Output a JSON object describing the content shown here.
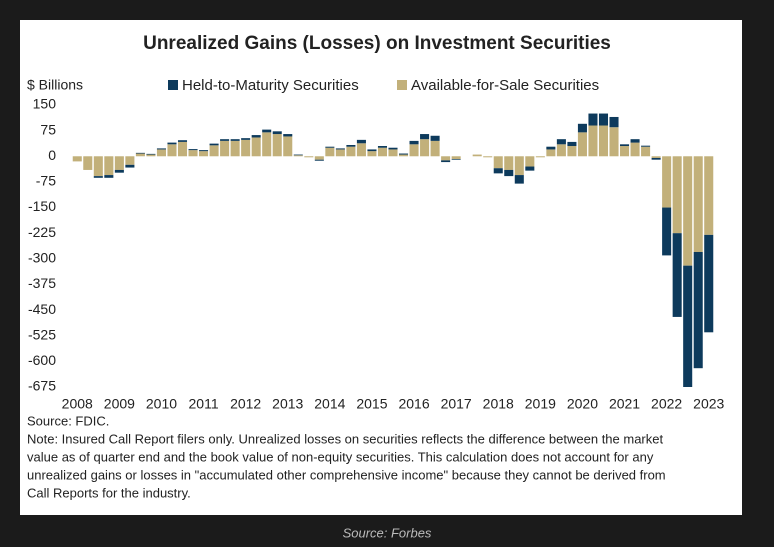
{
  "chart_data": {
    "type": "bar",
    "stacked": true,
    "title": "Unrealized Gains (Losses) on Investment Securities",
    "y_axis_label": "$ Billions",
    "categories": [
      "2008",
      null,
      null,
      null,
      "2009",
      null,
      null,
      null,
      "2010",
      null,
      null,
      null,
      "2011",
      null,
      null,
      null,
      "2012",
      null,
      null,
      null,
      "2013",
      null,
      null,
      null,
      "2014",
      null,
      null,
      null,
      "2015",
      null,
      null,
      null,
      "2016",
      null,
      null,
      null,
      "2017",
      null,
      null,
      null,
      "2018",
      null,
      null,
      null,
      "2019",
      null,
      null,
      null,
      "2020",
      null,
      null,
      null,
      "2021",
      null,
      null,
      null,
      "2022",
      null,
      null,
      null,
      "2023"
    ],
    "series": [
      {
        "name": "Held-to-Maturity Securities",
        "color": "#0d3a5c",
        "values": [
          0,
          0,
          -5,
          -8,
          -8,
          -8,
          2,
          2,
          3,
          5,
          5,
          3,
          3,
          5,
          5,
          5,
          5,
          7,
          8,
          8,
          7,
          2,
          0,
          -3,
          3,
          3,
          5,
          10,
          5,
          5,
          5,
          3,
          10,
          15,
          15,
          -5,
          -2,
          0,
          0,
          0,
          -15,
          -18,
          -25,
          -12,
          0,
          8,
          15,
          12,
          25,
          35,
          35,
          30,
          5,
          10,
          3,
          -5,
          -140,
          -245,
          -355,
          -340,
          -285
        ]
      },
      {
        "name": "Available-for-Sale Securities",
        "color": "#c2b07a",
        "values": [
          -15,
          -40,
          -58,
          -55,
          -40,
          -25,
          8,
          5,
          20,
          35,
          42,
          18,
          15,
          32,
          45,
          45,
          48,
          55,
          70,
          65,
          58,
          3,
          -3,
          -10,
          25,
          20,
          28,
          38,
          15,
          25,
          20,
          5,
          35,
          50,
          45,
          -12,
          -8,
          0,
          5,
          -3,
          -35,
          -40,
          -55,
          -30,
          -3,
          20,
          35,
          30,
          70,
          90,
          90,
          85,
          30,
          40,
          28,
          -5,
          -150,
          -225,
          -320,
          -280,
          -230
        ]
      }
    ],
    "ylim": [
      -675,
      150
    ],
    "yticks": [
      150,
      75,
      0,
      -75,
      -150,
      -225,
      -300,
      -375,
      -450,
      -525,
      -600,
      -675
    ],
    "grid": false,
    "source": "Source: FDIC.",
    "note_lines": [
      "Note: Insured Call Report filers only. Unrealized losses on securities reflects the difference between the market",
      "value as of quarter end and the book value of non-equity securities. This calculation does not account for any",
      "unrealized gains or losses in \"accumulated other comprehensive income\" because they cannot be derived from",
      "Call Reports for the industry."
    ],
    "caption": "Source: Forbes"
  }
}
